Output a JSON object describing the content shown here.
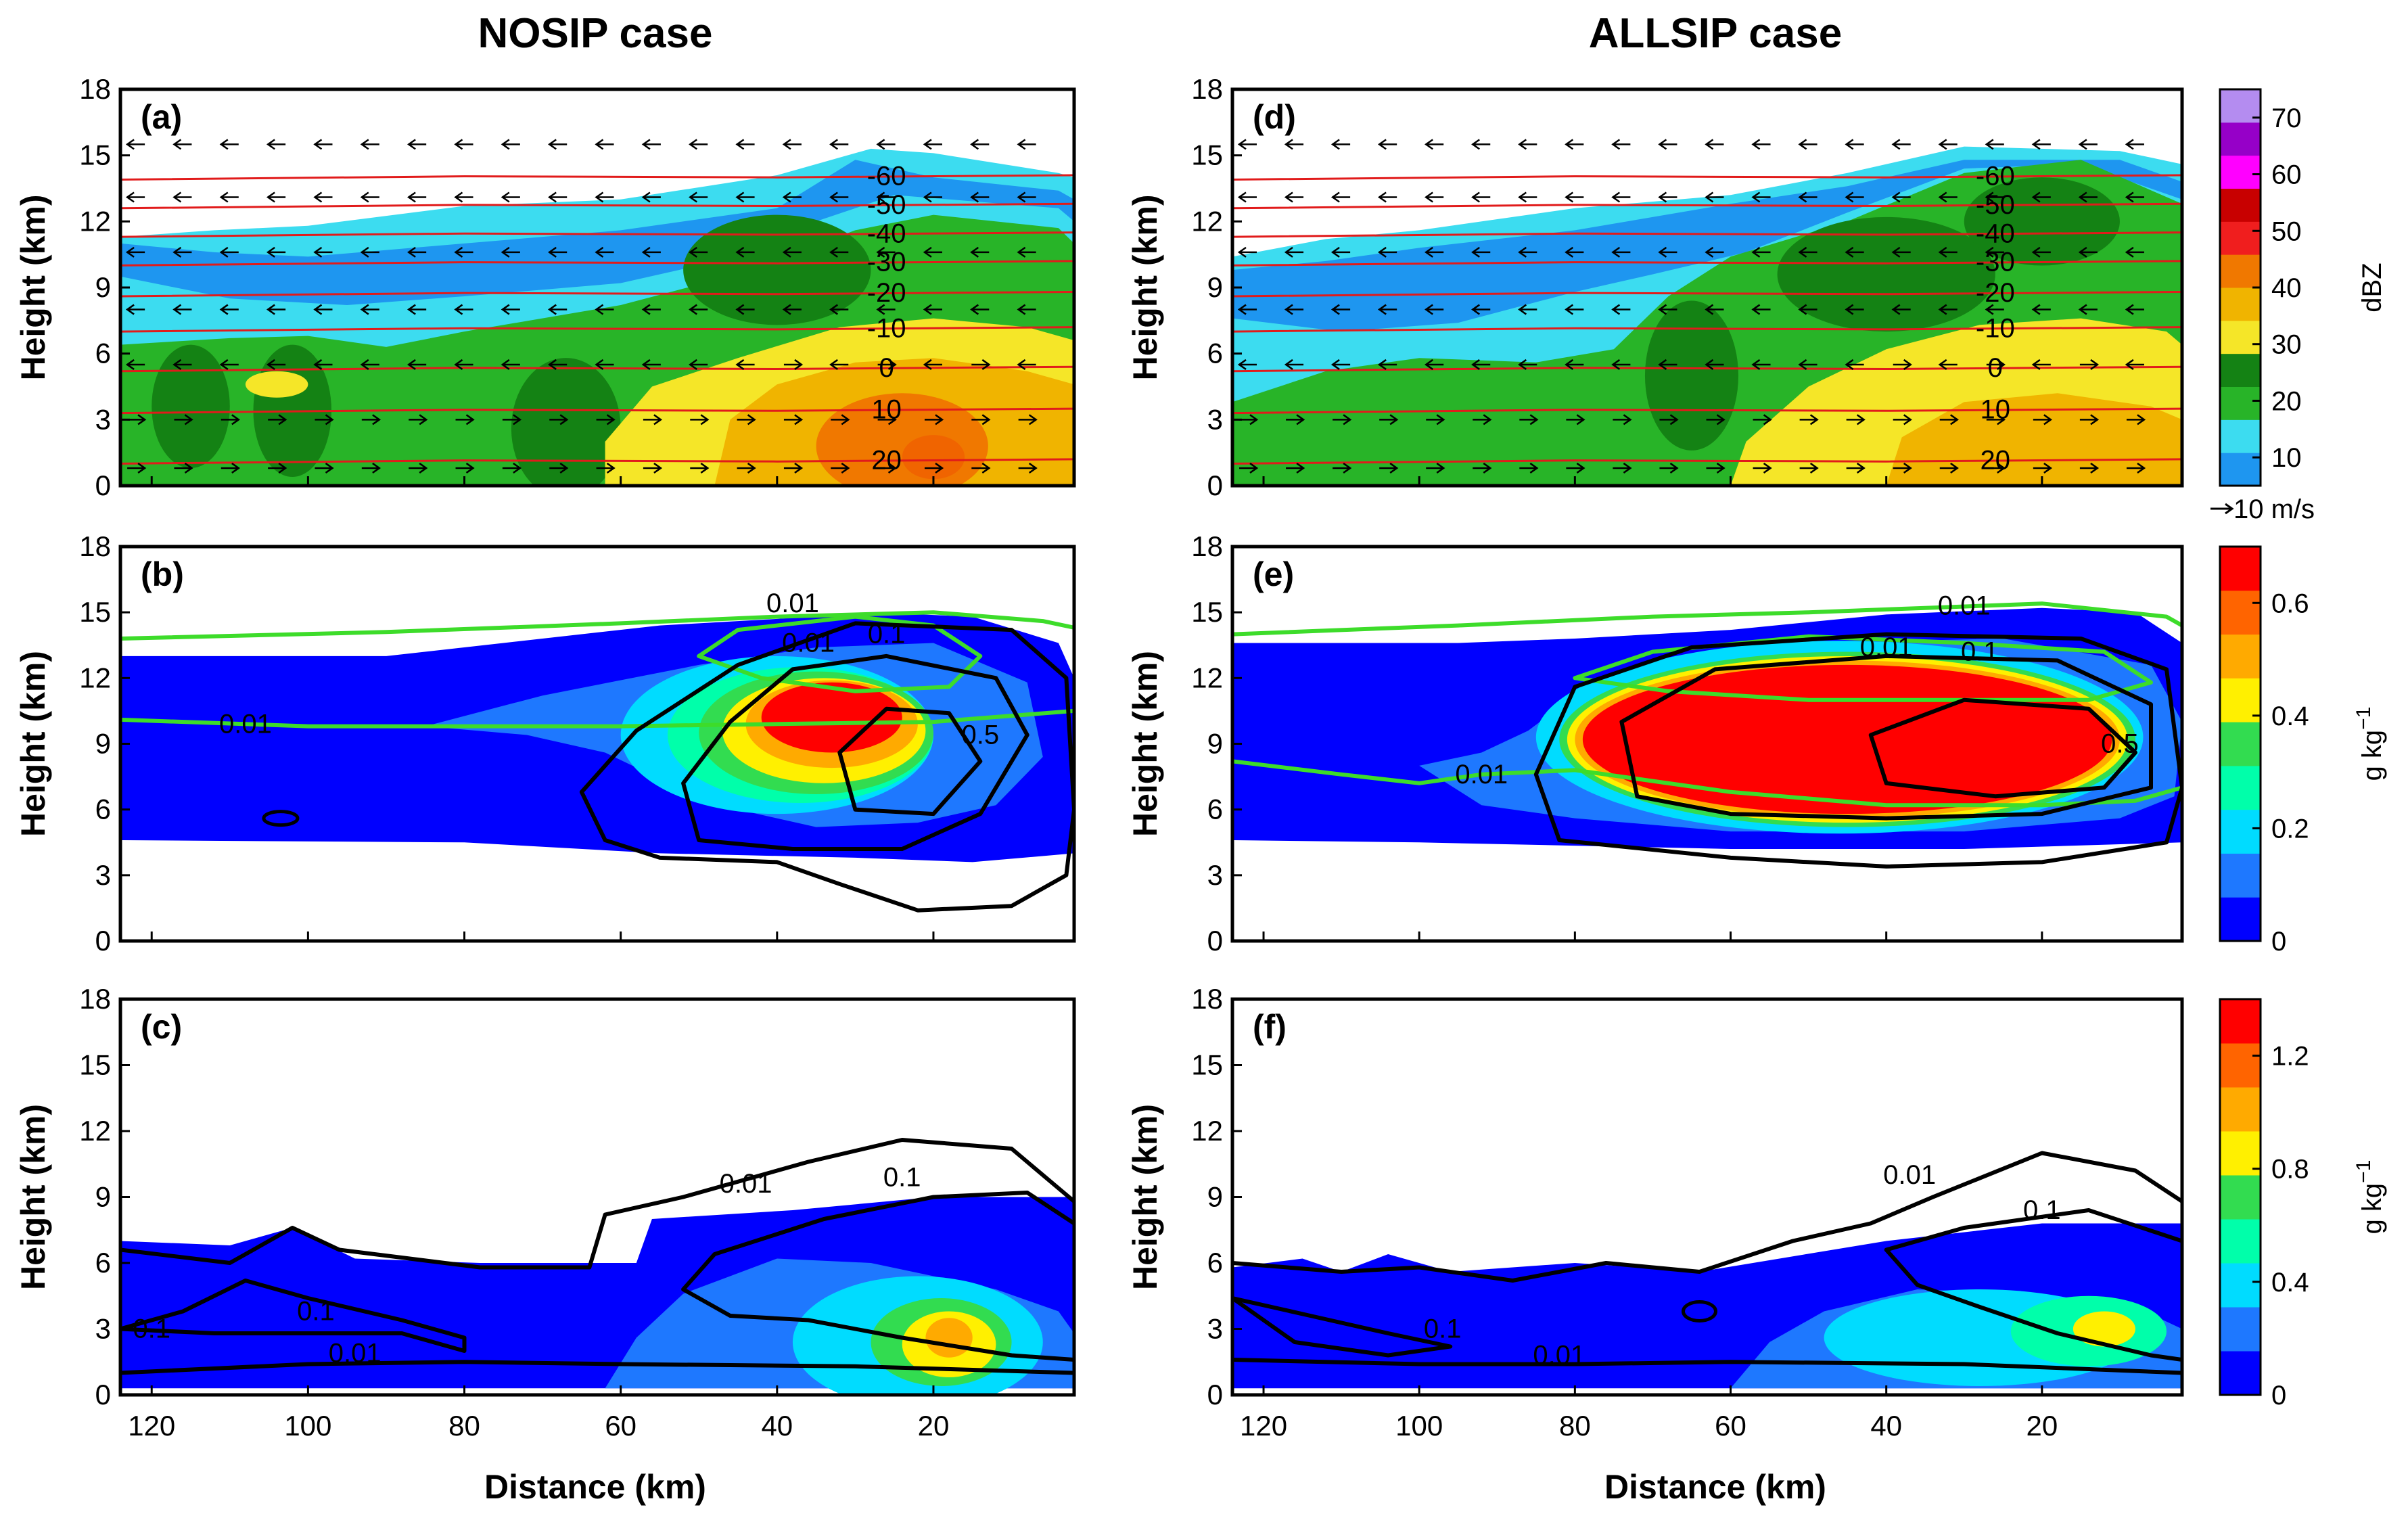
{
  "chart_data": {
    "type": "heatmap",
    "titles": [
      "NOSIP case",
      "ALLSIP case"
    ],
    "xlabel": "Distance (km)",
    "ylabel": "Height (km)",
    "xlim": [
      124,
      2
    ],
    "ylim": [
      0,
      18
    ],
    "x_ticks": [
      120,
      100,
      80,
      60,
      40,
      20
    ],
    "y_ticks": [
      0,
      3,
      6,
      9,
      12,
      15,
      18
    ],
    "panels": [
      {
        "label": "(a)",
        "case": "NOSIP",
        "field": "reflectivity"
      },
      {
        "label": "(b)",
        "case": "NOSIP",
        "field": "ice"
      },
      {
        "label": "(c)",
        "case": "NOSIP",
        "field": "rain"
      },
      {
        "label": "(d)",
        "case": "ALLSIP",
        "field": "reflectivity"
      },
      {
        "label": "(e)",
        "case": "ALLSIP",
        "field": "ice"
      },
      {
        "label": "(f)",
        "case": "ALLSIP",
        "field": "rain"
      }
    ],
    "isotherm_labels": [
      "-60",
      "-50",
      "-40",
      "-30",
      "-20",
      "-10",
      "0",
      "10",
      "20"
    ],
    "isotherm_heights_km": [
      13.9,
      12.6,
      11.3,
      10.0,
      8.6,
      7.0,
      5.2,
      3.3,
      1.0
    ],
    "contour_labels": {
      "small": "0.01",
      "mid": "0.1",
      "large": "0.5"
    },
    "wind_reference": "10 m/s",
    "colorbars": [
      {
        "units": "dBZ",
        "ticks": [
          "10",
          "20",
          "30",
          "40",
          "50",
          "60",
          "70"
        ],
        "vmin": 5,
        "vmax": 75,
        "colors": [
          "#1e96f0",
          "#3cdcf0",
          "#28b428",
          "#148214",
          "#f5e628",
          "#f0b400",
          "#f07800",
          "#f01e1e",
          "#c80000",
          "#ff00ff",
          "#9600c8",
          "#b48cf0"
        ]
      },
      {
        "units": "g kg",
        "superscript": "−1",
        "ticks": [
          "0",
          "0.2",
          "0.4",
          "0.6"
        ],
        "vmin": 0,
        "vmax": 0.7,
        "colors": [
          "#0000ff",
          "#1e78ff",
          "#00dcff",
          "#00ffaa",
          "#32dc50",
          "#fff000",
          "#ffaa00",
          "#ff6400",
          "#ff0000"
        ]
      },
      {
        "units": "g kg",
        "superscript": "−1",
        "ticks": [
          "0",
          "0.4",
          "0.8",
          "1.2"
        ],
        "vmin": 0,
        "vmax": 1.4,
        "colors": [
          "#0000ff",
          "#1e78ff",
          "#00dcff",
          "#00ffaa",
          "#32dc50",
          "#fff000",
          "#ffaa00",
          "#ff6400",
          "#ff0000"
        ]
      }
    ]
  }
}
